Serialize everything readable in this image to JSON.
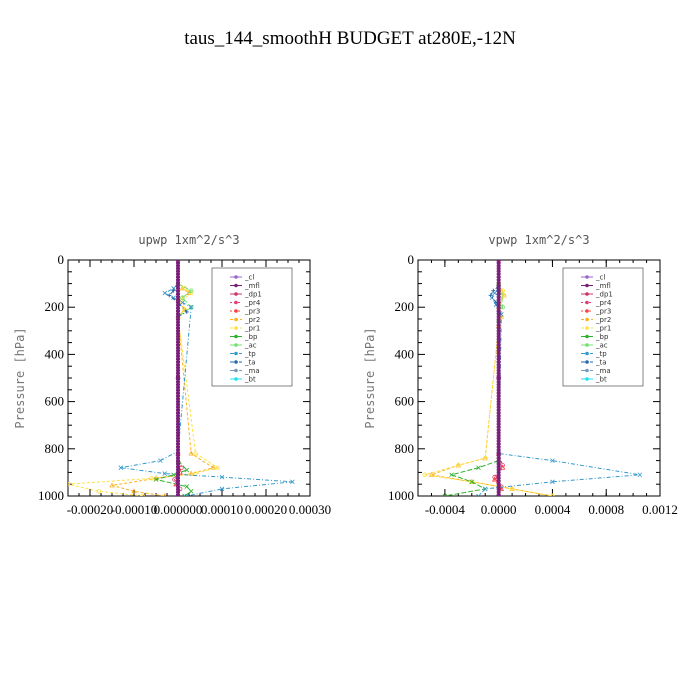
{
  "figure": {
    "title": "taus_144_smoothH  BUDGET at280E,-12N"
  },
  "legend_entries": [
    "_cl",
    "_mfl",
    "_dp1",
    "_pr4",
    "_pr3",
    "_pr2",
    "_pr1",
    "_bp",
    "_ac",
    "_tp",
    "_ta",
    "_ma",
    "_bt"
  ],
  "colors": {
    "_cl": "#9966cc",
    "_mfl": "#7a1f7a",
    "_dp1": "#cc3366",
    "_pr4": "#e04070",
    "_pr3": "#ff4040",
    "_pr2": "#ffb020",
    "_pr1": "#ffe040",
    "_bp": "#30b030",
    "_ac": "#70e070",
    "_tp": "#3399cc",
    "_ta": "#2266aa",
    "_ma": "#7799bb",
    "_bt": "#20e0f0"
  },
  "chart_data": [
    {
      "type": "line",
      "title": "upwp   1xm^2/s^3",
      "ylabel": "Pressure [hPa]",
      "xlim": [
        -0.00025,
        0.0003
      ],
      "ylim": [
        1000,
        0
      ],
      "xticks": [
        "-0.00020",
        "-0.00010",
        "0.000000",
        "0.00010",
        "0.00020",
        "0.00030"
      ],
      "yticks": [
        "0",
        "200",
        "400",
        "600",
        "800",
        "1000"
      ],
      "legend_position": "top-right",
      "series": [
        {
          "name": "_cl",
          "x": [
            0,
            0,
            0
          ],
          "y": [
            0,
            500,
            1000
          ]
        },
        {
          "name": "_mfl",
          "x": [
            0,
            0,
            0
          ],
          "y": [
            0,
            500,
            1000
          ]
        },
        {
          "name": "_dp1",
          "x": [
            0,
            0,
            0
          ],
          "y": [
            0,
            500,
            1000
          ]
        },
        {
          "name": "_pr4",
          "x": [
            0,
            8e-06,
            -8e-06,
            5e-06,
            0
          ],
          "y": [
            820,
            880,
            930,
            970,
            1000
          ]
        },
        {
          "name": "_pr3",
          "x": [
            0,
            5e-06,
            -5e-06,
            0
          ],
          "y": [
            820,
            900,
            950,
            1000
          ]
        },
        {
          "name": "_pr2",
          "x": [
            0,
            1e-05,
            2.5e-05,
            0,
            1.5e-05,
            0,
            3e-05,
            8e-05,
            3e-05,
            -5e-05,
            -0.00015,
            -0.0001,
            -3e-05
          ],
          "y": [
            100,
            120,
            140,
            170,
            210,
            240,
            820,
            880,
            905,
            925,
            955,
            980,
            1000
          ]
        },
        {
          "name": "_pr1",
          "x": [
            0,
            1.5e-05,
            3e-05,
            1e-05,
            1.5e-05,
            0,
            4e-05,
            9e-05,
            4e-05,
            -6e-05,
            -0.00025,
            -0.00018,
            -8e-05
          ],
          "y": [
            100,
            120,
            140,
            170,
            210,
            240,
            820,
            880,
            905,
            925,
            950,
            980,
            1000
          ]
        },
        {
          "name": "_bp",
          "x": [
            0,
            2e-05,
            -1e-05,
            -5e-05,
            2e-05,
            3e-05,
            1.5e-05
          ],
          "y": [
            850,
            890,
            910,
            930,
            960,
            980,
            1000
          ]
        },
        {
          "name": "_ac",
          "x": [
            0,
            3e-05,
            1e-05,
            3e-05,
            0
          ],
          "y": [
            100,
            130,
            160,
            200,
            240
          ]
        },
        {
          "name": "_tp",
          "x": [
            0,
            -1e-05,
            -3e-05,
            -1e-05,
            1e-05,
            3e-05,
            0,
            -4e-05,
            -0.00013,
            -3e-05,
            0.0001,
            0.00026,
            0.0001,
            2e-05
          ],
          "y": [
            100,
            120,
            140,
            160,
            180,
            200,
            810,
            850,
            880,
            905,
            920,
            940,
            970,
            1000
          ]
        },
        {
          "name": "_ta",
          "x": [
            0,
            -1e-05,
            -2e-05,
            0,
            2e-05,
            0
          ],
          "y": [
            100,
            130,
            150,
            180,
            220,
            240
          ]
        },
        {
          "name": "_ma",
          "x": [
            0,
            0,
            0
          ],
          "y": [
            0,
            500,
            1000
          ]
        },
        {
          "name": "_bt",
          "x": [
            0,
            0,
            0
          ],
          "y": [
            0,
            500,
            1000
          ]
        }
      ]
    },
    {
      "type": "line",
      "title": "vpwp   1xm^2/s^3",
      "ylabel": "Pressure [hPa]",
      "xlim": [
        -0.0006,
        0.0012
      ],
      "ylim": [
        1000,
        0
      ],
      "xticks": [
        "-0.0004",
        "0.0000",
        "0.0004",
        "0.0008",
        "0.0012"
      ],
      "yticks": [
        "0",
        "200",
        "400",
        "600",
        "800",
        "1000"
      ],
      "legend_position": "top-right",
      "series": [
        {
          "name": "_cl",
          "x": [
            0,
            0,
            0
          ],
          "y": [
            0,
            500,
            1000
          ]
        },
        {
          "name": "_mfl",
          "x": [
            0,
            0,
            0
          ],
          "y": [
            0,
            500,
            1000
          ]
        },
        {
          "name": "_dp1",
          "x": [
            0,
            0,
            0
          ],
          "y": [
            0,
            500,
            1000
          ]
        },
        {
          "name": "_pr4",
          "x": [
            0,
            3e-05,
            -3e-05,
            2e-05,
            0
          ],
          "y": [
            820,
            870,
            920,
            960,
            1000
          ]
        },
        {
          "name": "_pr3",
          "x": [
            0,
            3e-05,
            -3e-05,
            2e-05,
            0
          ],
          "y": [
            820,
            880,
            930,
            970,
            1000
          ]
        },
        {
          "name": "_pr2",
          "x": [
            0,
            2e-05,
            4e-05,
            0,
            2e-05,
            0,
            -0.0001,
            -0.0003,
            -0.0005,
            -0.0002,
            0.0001,
            0.0004
          ],
          "y": [
            100,
            130,
            150,
            200,
            240,
            280,
            840,
            870,
            910,
            940,
            970,
            1000
          ]
        },
        {
          "name": "_pr1",
          "x": [
            0,
            3e-05,
            4e-05,
            1e-05,
            2e-05,
            0,
            -0.0001,
            -0.0003,
            -0.00055,
            -0.0002,
            0.0001,
            0.0004
          ],
          "y": [
            100,
            130,
            150,
            200,
            240,
            280,
            840,
            870,
            910,
            940,
            970,
            1000
          ]
        },
        {
          "name": "_bp",
          "x": [
            0,
            -0.00015,
            -0.00035,
            -0.0002,
            -0.0001,
            -0.0004
          ],
          "y": [
            850,
            880,
            910,
            940,
            970,
            1000
          ]
        },
        {
          "name": "_ac",
          "x": [
            0,
            2e-05,
            3e-05,
            0
          ],
          "y": [
            100,
            150,
            200,
            260
          ]
        },
        {
          "name": "_tp",
          "x": [
            0,
            -3e-05,
            -5e-05,
            -2e-05,
            2e-05,
            0,
            0.0004,
            0.00105,
            0.0004,
            -0.0001,
            -0.00015
          ],
          "y": [
            120,
            140,
            160,
            190,
            230,
            820,
            850,
            910,
            940,
            970,
            1000
          ]
        },
        {
          "name": "_ta",
          "x": [
            0,
            -4e-05,
            -6e-05,
            -2e-05,
            0
          ],
          "y": [
            110,
            130,
            150,
            180,
            220
          ]
        },
        {
          "name": "_ma",
          "x": [
            0,
            0,
            0
          ],
          "y": [
            0,
            500,
            1000
          ]
        },
        {
          "name": "_bt",
          "x": [
            0,
            0,
            0
          ],
          "y": [
            0,
            500,
            1000
          ]
        }
      ]
    }
  ]
}
